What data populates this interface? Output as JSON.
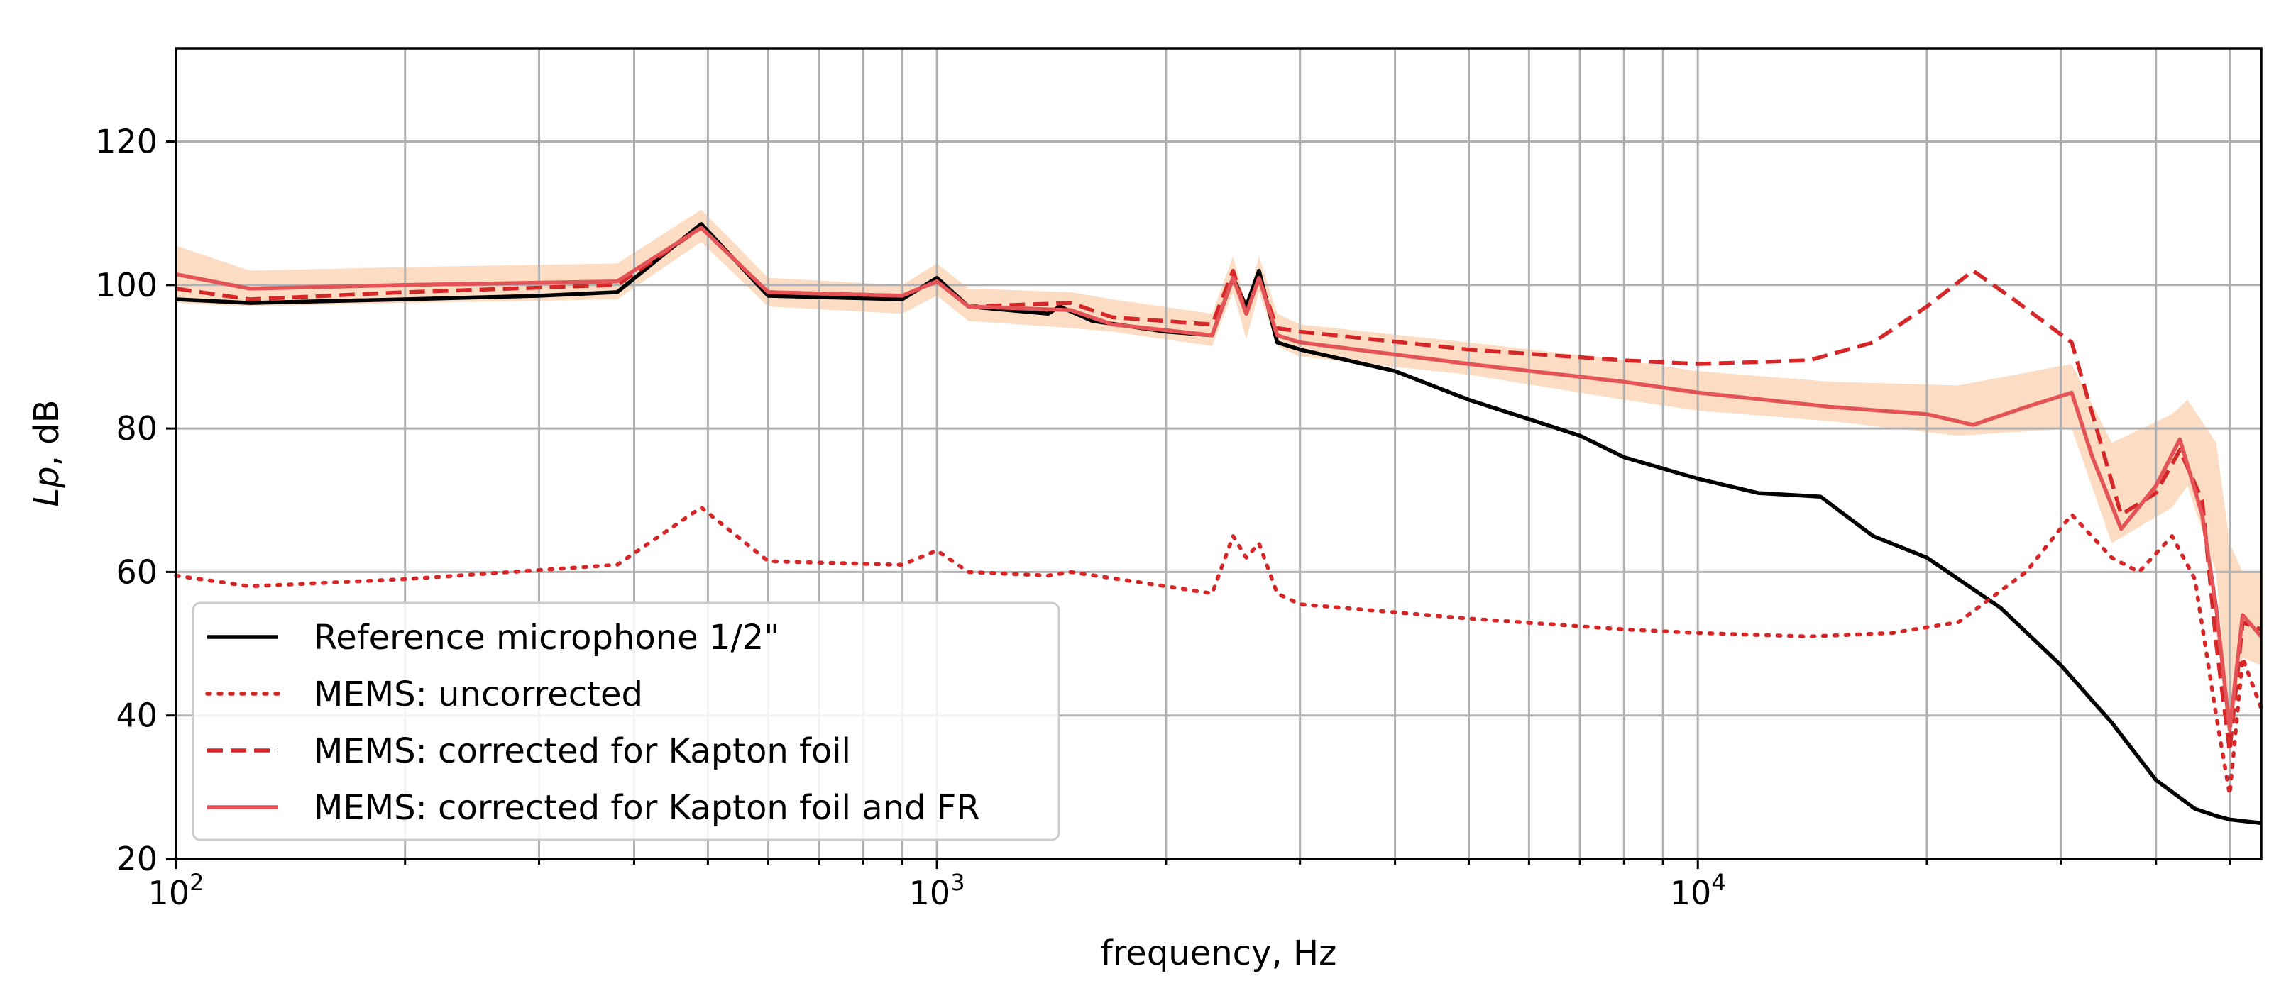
{
  "chart_data": {
    "type": "line",
    "title": "",
    "xlabel": "frequency, Hz",
    "ylabel_italic": "Lp",
    "ylabel_rest": ", dB",
    "xscale": "log",
    "xlim": [
      100,
      55000
    ],
    "ylim": [
      20,
      133
    ],
    "grid": true,
    "legend_position": "lower-left",
    "yticks": [
      20,
      40,
      60,
      80,
      100,
      120
    ],
    "xticks": [
      {
        "value": 100,
        "base": "10",
        "exp": "2"
      },
      {
        "value": 1000,
        "base": "10",
        "exp": "3"
      },
      {
        "value": 10000,
        "base": "10",
        "exp": "4"
      }
    ],
    "band": {
      "name": "uncertainty",
      "color": "#fbd7b9",
      "x": [
        100,
        125,
        200,
        380,
        490,
        600,
        900,
        1000,
        1100,
        1500,
        1700,
        2300,
        2450,
        2550,
        2650,
        2800,
        3000,
        5000,
        8000,
        10000,
        15000,
        22000,
        31000,
        35000,
        42000,
        44000,
        48000,
        50000,
        52000,
        55000
      ],
      "upper": [
        105.5,
        102,
        102.5,
        103,
        110.5,
        101,
        100,
        103,
        99.5,
        99,
        98,
        96,
        104,
        97,
        104,
        96,
        94.5,
        92,
        89.5,
        88,
        86.5,
        86,
        89,
        78,
        82,
        84,
        78,
        64,
        60,
        60
      ],
      "lower": [
        97.5,
        97,
        97.5,
        98,
        106,
        97,
        96,
        98.5,
        95,
        94,
        93.5,
        91.5,
        99,
        92.5,
        99,
        91.5,
        90,
        87.5,
        84,
        82.5,
        81,
        79,
        80,
        64,
        69,
        72,
        60,
        37,
        48,
        47
      ]
    },
    "series": [
      {
        "name": "Reference microphone 1/2\"",
        "color": "#000000",
        "dash": "solid",
        "x": [
          100,
          125,
          200,
          300,
          380,
          490,
          600,
          900,
          1000,
          1100,
          1400,
          1450,
          1600,
          2000,
          2300,
          2450,
          2550,
          2650,
          2800,
          3000,
          4000,
          5000,
          7000,
          8000,
          10000,
          12000,
          14500,
          17000,
          20000,
          25000,
          30000,
          35000,
          40000,
          45000,
          48000,
          50000,
          55000
        ],
        "values": [
          98,
          97.5,
          98,
          98.5,
          99,
          108.5,
          98.5,
          98,
          101,
          97,
          96,
          97,
          95,
          93.5,
          93,
          101,
          97,
          102,
          92,
          91,
          88,
          84,
          79,
          76,
          73,
          71,
          70.5,
          65,
          62,
          55,
          47,
          39,
          31,
          27,
          26,
          25.5,
          25
        ]
      },
      {
        "name": "MEMS: uncorrected",
        "color": "#d62728",
        "dash": "dotted",
        "x": [
          100,
          125,
          200,
          380,
          490,
          600,
          900,
          1000,
          1100,
          1400,
          1500,
          2000,
          2300,
          2450,
          2550,
          2650,
          2800,
          3000,
          5000,
          8000,
          10000,
          14000,
          18000,
          22000,
          27000,
          31000,
          35000,
          38000,
          42000,
          45000,
          48000,
          50000,
          52000,
          55000
        ],
        "values": [
          59.5,
          58,
          59,
          61,
          69,
          61.5,
          61,
          63,
          60,
          59.5,
          60,
          58,
          57,
          65,
          62,
          64,
          57,
          55.5,
          53.5,
          52,
          51.5,
          51,
          51.5,
          53,
          60,
          68,
          62,
          60,
          65,
          59,
          40,
          29,
          48,
          41
        ]
      },
      {
        "name": "MEMS: corrected for Kapton foil",
        "color": "#d62728",
        "dash": "dashed",
        "x": [
          100,
          125,
          200,
          380,
          490,
          600,
          900,
          1000,
          1100,
          1500,
          1700,
          2300,
          2450,
          2550,
          2650,
          2800,
          3000,
          5000,
          8000,
          10000,
          14000,
          17000,
          20000,
          23000,
          26000,
          31000,
          33000,
          36000,
          40000,
          43000,
          46000,
          48000,
          50000,
          52000,
          55000
        ],
        "values": [
          99.5,
          98,
          99,
          100,
          108,
          99,
          98.5,
          100.5,
          97,
          97.5,
          95.5,
          94.5,
          102,
          96,
          101,
          94,
          93.5,
          91,
          89.5,
          89,
          89.5,
          92,
          97,
          102,
          98,
          92,
          82,
          68,
          71,
          77,
          70,
          50,
          35,
          53,
          52
        ]
      },
      {
        "name": "MEMS: corrected for Kapton foil and FR",
        "color": "#e45457",
        "dash": "solid",
        "x": [
          100,
          125,
          200,
          380,
          490,
          600,
          900,
          1000,
          1100,
          1500,
          1700,
          2300,
          2450,
          2550,
          2650,
          2800,
          3000,
          5000,
          8000,
          10000,
          15000,
          20000,
          23000,
          27000,
          31000,
          33000,
          36000,
          40000,
          43000,
          46000,
          48000,
          50000,
          52000,
          55000
        ],
        "values": [
          101.5,
          99.5,
          100,
          100.5,
          108,
          99,
          98.5,
          100.5,
          97,
          96.5,
          94.5,
          93,
          101,
          96,
          101,
          93,
          92,
          89,
          86.5,
          85,
          83,
          82,
          80.5,
          83,
          85,
          76,
          66,
          72,
          78.5,
          68,
          55,
          38,
          54,
          51
        ]
      }
    ]
  }
}
